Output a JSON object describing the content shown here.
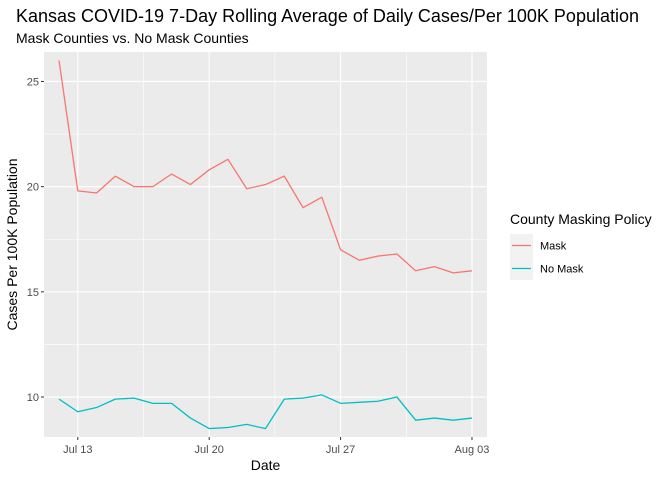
{
  "chart_data": {
    "type": "line",
    "title": "Kansas COVID-19 7-Day Rolling Average of Daily Cases/Per 100K Population",
    "subtitle": "Mask Counties vs. No Mask Counties",
    "xlabel": "Date",
    "ylabel": "Cases Per 100K Population",
    "x_ticks": [
      {
        "day": 13,
        "label": "Jul 13"
      },
      {
        "day": 20,
        "label": "Jul 20"
      },
      {
        "day": 27,
        "label": "Jul 27"
      },
      {
        "day": 34,
        "label": "Aug 03"
      }
    ],
    "y_ticks": [
      10,
      15,
      20,
      25
    ],
    "xlim": [
      11.2,
      34.8
    ],
    "ylim": [
      8.1,
      26.4
    ],
    "grid": true,
    "legend": {
      "title": "County Masking Policy",
      "position": "right"
    },
    "dates": [
      "Jul 12",
      "Jul 13",
      "Jul 14",
      "Jul 15",
      "Jul 16",
      "Jul 17",
      "Jul 18",
      "Jul 19",
      "Jul 20",
      "Jul 21",
      "Jul 22",
      "Jul 23",
      "Jul 24",
      "Jul 25",
      "Jul 26",
      "Jul 27",
      "Jul 28",
      "Jul 29",
      "Jul 30",
      "Jul 31",
      "Aug 01",
      "Aug 02",
      "Aug 03"
    ],
    "x": [
      12,
      13,
      14,
      15,
      16,
      17,
      18,
      19,
      20,
      21,
      22,
      23,
      24,
      25,
      26,
      27,
      28,
      29,
      30,
      31,
      32,
      33,
      34
    ],
    "series": [
      {
        "name": "Mask",
        "color": "#F8766D",
        "values": [
          26.0,
          19.8,
          19.7,
          20.5,
          20.0,
          20.0,
          20.6,
          20.1,
          20.8,
          21.3,
          19.9,
          20.1,
          20.5,
          19.0,
          19.5,
          17.0,
          16.5,
          16.7,
          16.8,
          16.0,
          16.2,
          15.9,
          16.0
        ]
      },
      {
        "name": "No Mask",
        "color": "#00BFC4",
        "values": [
          9.9,
          9.3,
          9.5,
          9.9,
          9.95,
          9.7,
          9.7,
          9.0,
          8.5,
          8.55,
          8.7,
          8.5,
          9.9,
          9.95,
          10.1,
          9.7,
          9.75,
          9.8,
          10.0,
          8.9,
          9.0,
          8.9,
          9.0
        ]
      }
    ]
  }
}
